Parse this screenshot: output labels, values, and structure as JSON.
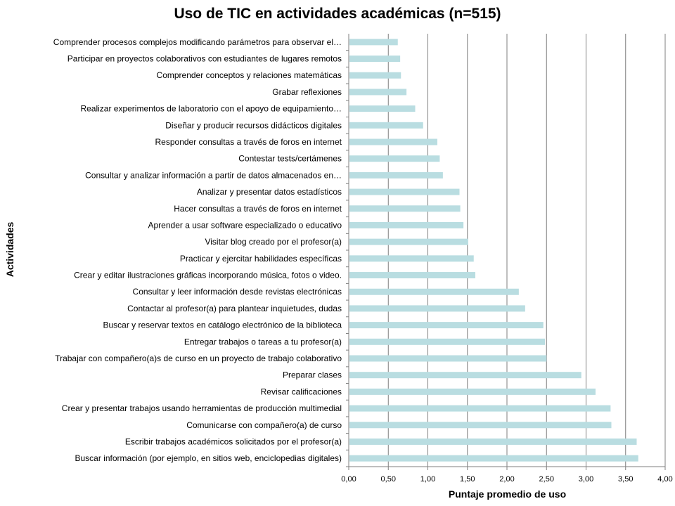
{
  "chart_data": {
    "type": "bar",
    "orientation": "horizontal",
    "title": "Uso de TIC en actividades académicas (n=515)",
    "xlabel": "Puntaje promedio de uso",
    "ylabel": "Actividades",
    "xlim": [
      0,
      4
    ],
    "x_ticks": [
      "0,00",
      "0,50",
      "1,00",
      "1,50",
      "2,00",
      "2,50",
      "3,00",
      "3,50",
      "4,00"
    ],
    "grid": "vertical",
    "bar_color": "#b9dde1",
    "categories": [
      "Comprender procesos complejos modificando parámetros para observar el…",
      "Participar en proyectos colaborativos con estudiantes de lugares remotos",
      "Comprender conceptos y relaciones matemáticas",
      "Grabar reflexiones",
      "Realizar experimentos de laboratorio con el apoyo de equipamiento…",
      "Diseñar y producir recursos didácticos digitales",
      "Responder consultas a través de foros en internet",
      "Contestar tests/certámenes",
      "Consultar y analizar información a partir de datos almacenados en…",
      "Analizar y presentar datos estadísticos",
      "Hacer consultas a través de foros en internet",
      "Aprender a usar software especializado o educativo",
      "Visitar blog creado por el profesor(a)",
      "Practicar y ejercitar habilidades específicas",
      "Crear y editar ilustraciones gráficas incorporando música, fotos o video.",
      "Consultar y leer información desde revistas electrónicas",
      "Contactar al profesor(a) para plantear inquietudes, dudas",
      "Buscar y reservar textos en catálogo electrónico de la biblioteca",
      "Entregar trabajos o tareas a tu profesor(a)",
      "Trabajar con compañero(a)s de curso en un proyecto de trabajo colaborativo",
      "Preparar clases",
      "Revisar calificaciones",
      "Crear y presentar trabajos usando herramientas de producción multimedial",
      "Comunicarse con compañero(a) de curso",
      "Escribir trabajos académicos solicitados por el profesor(a)",
      "Buscar información (por ejemplo, en sitios web, enciclopedias digitales)"
    ],
    "values": [
      0.62,
      0.65,
      0.66,
      0.73,
      0.84,
      0.94,
      1.12,
      1.15,
      1.19,
      1.4,
      1.41,
      1.45,
      1.51,
      1.58,
      1.6,
      2.15,
      2.23,
      2.46,
      2.48,
      2.5,
      2.94,
      3.12,
      3.31,
      3.32,
      3.64,
      3.66
    ]
  }
}
